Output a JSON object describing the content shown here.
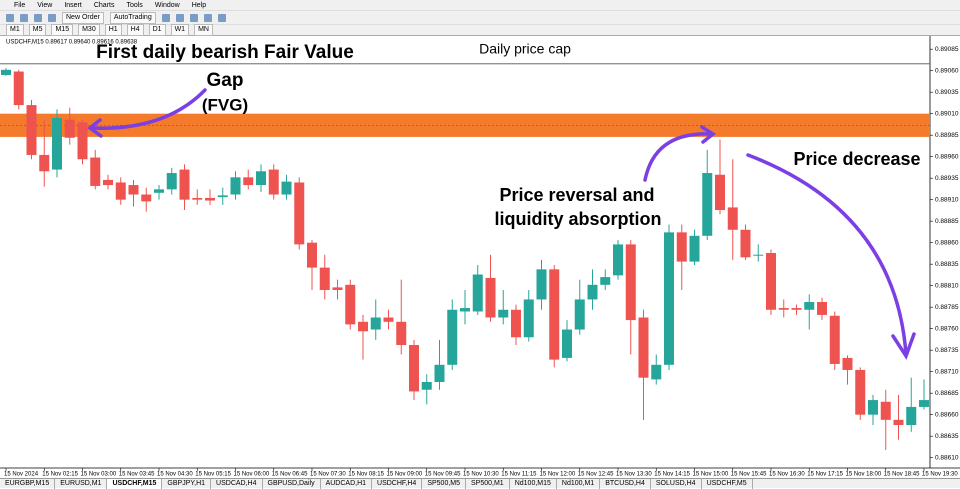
{
  "ui": {
    "menu": [
      "File",
      "View",
      "Insert",
      "Charts",
      "Tools",
      "Window",
      "Help"
    ],
    "toolbar": {
      "new_order": "New Order",
      "autotrading": "AutoTrading",
      "timeframes": [
        "M1",
        "M5",
        "M15",
        "M30",
        "H1",
        "H4",
        "D1",
        "W1",
        "MN"
      ]
    },
    "symbol_info": "USDCHF,M15  0.89617 0.89640 0.89616 0.89638",
    "tabs": [
      "EURGBP,M15",
      "EURUSD,M1",
      "USDCHF,M15",
      "GBPJPY,H1",
      "USDCAD,H4",
      "GBPUSD,Daily",
      "AUDCAD,H1",
      "USDCHF,H4",
      "SP500,M5",
      "SP500,M1",
      "Nd100,M15",
      "Nd100,M1",
      "BTCUSD,H4",
      "SOLUSD,H4",
      "USDCHF,M5"
    ],
    "active_tab": 2
  },
  "chart_data": {
    "type": "candlestick",
    "categories": [
      "15 Nov 2024",
      null,
      null,
      "15 Nov 02:15",
      null,
      null,
      "15 Nov 03:00",
      null,
      null,
      "15 Nov 03:45",
      null,
      null,
      "15 Nov 04:30",
      null,
      null,
      "15 Nov 05:15",
      null,
      null,
      "15 Nov 06:00",
      null,
      null,
      "15 Nov 06:45",
      null,
      null,
      "15 Nov 07:30",
      null,
      null,
      "15 Nov 08:15",
      null,
      null,
      "15 Nov 09:00",
      null,
      null,
      "15 Nov 09:45",
      null,
      null,
      "15 Nov 10:30",
      null,
      null,
      "15 Nov 11:15",
      null,
      null,
      "15 Nov 12:00",
      null,
      null,
      "15 Nov 12:45",
      null,
      null,
      "15 Nov 13:30",
      null,
      null,
      "15 Nov 14:15",
      null,
      null,
      "15 Nov 15:00",
      null,
      null,
      "15 Nov 15:45",
      null,
      null,
      "15 Nov 16:30",
      null,
      null,
      "15 Nov 17:15",
      null,
      null,
      "15 Nov 18:00",
      null,
      null,
      "15 Nov 18:45",
      null,
      null,
      "15 Nov 19:30"
    ],
    "open": [
      0.89055,
      0.89059,
      0.8902,
      0.88962,
      0.88945,
      0.89003,
      0.89,
      0.88959,
      0.88933,
      0.8893,
      0.88927,
      0.88916,
      0.88918,
      0.88922,
      0.88945,
      0.88912,
      0.88912,
      0.88913,
      0.88916,
      0.88936,
      0.88927,
      0.88945,
      0.88916,
      0.8893,
      0.8886,
      0.88831,
      0.88808,
      0.88811,
      0.88768,
      0.88759,
      0.88773,
      0.88768,
      0.88741,
      0.88689,
      0.88698,
      0.88718,
      0.8878,
      0.8878,
      0.88819,
      0.88773,
      0.88782,
      0.8875,
      0.88794,
      0.88829,
      0.88726,
      0.88759,
      0.88794,
      0.88811,
      0.88822,
      0.88858,
      0.88773,
      0.88701,
      0.88718,
      0.88872,
      0.88838,
      0.88868,
      0.88939,
      0.88901,
      0.88875,
      0.88845,
      0.88848,
      0.88784,
      0.88784,
      0.88782,
      0.88791,
      0.88775,
      0.88726,
      0.88712,
      0.8866,
      0.88675,
      0.88654,
      0.88648,
      0.88669
    ],
    "high": [
      0.89063,
      0.89061,
      0.89026,
      0.89003,
      0.89015,
      0.89017,
      0.89003,
      0.88968,
      0.88939,
      0.88936,
      0.88933,
      0.88924,
      0.88927,
      0.88947,
      0.88951,
      0.88922,
      0.88922,
      0.88924,
      0.88943,
      0.88945,
      0.88951,
      0.88951,
      0.88939,
      0.88936,
      0.88863,
      0.88846,
      0.88817,
      0.88817,
      0.88776,
      0.88794,
      0.88782,
      0.88817,
      0.88747,
      0.88707,
      0.88747,
      0.88794,
      0.88805,
      0.88834,
      0.88846,
      0.88805,
      0.88788,
      0.88805,
      0.8884,
      0.88834,
      0.8877,
      0.88817,
      0.88829,
      0.88829,
      0.88863,
      0.88863,
      0.88782,
      0.8873,
      0.88881,
      0.88881,
      0.88875,
      0.88968,
      0.8898,
      0.88957,
      0.88881,
      0.88858,
      0.88852,
      0.88794,
      0.88788,
      0.888,
      0.88796,
      0.8878,
      0.88729,
      0.88715,
      0.88683,
      0.88689,
      0.88683,
      0.88703,
      0.88701
    ],
    "low": [
      0.89054,
      0.89015,
      0.88957,
      0.88925,
      0.88936,
      0.88974,
      0.88951,
      0.88922,
      0.88922,
      0.88904,
      0.88902,
      0.88896,
      0.8891,
      0.88916,
      0.88898,
      0.88904,
      0.88904,
      0.88904,
      0.8891,
      0.88922,
      0.88919,
      0.8891,
      0.8891,
      0.88852,
      0.88805,
      0.88794,
      0.88794,
      0.88759,
      0.88724,
      0.88747,
      0.88759,
      0.8873,
      0.88677,
      0.88672,
      0.88689,
      0.88712,
      0.88765,
      0.88776,
      0.88768,
      0.88765,
      0.88741,
      0.88745,
      0.88782,
      0.88715,
      0.88722,
      0.88753,
      0.88782,
      0.88805,
      0.88817,
      0.8873,
      0.88654,
      0.88695,
      0.88712,
      0.88805,
      0.88834,
      0.88863,
      0.88893,
      0.8884,
      0.8884,
      0.88838,
      0.88776,
      0.88773,
      0.88776,
      0.88759,
      0.8877,
      0.88712,
      0.88695,
      0.88654,
      0.88648,
      0.88619,
      0.88631,
      0.8864,
      0.88666
    ],
    "close": [
      0.89061,
      0.8902,
      0.88962,
      0.88943,
      0.89005,
      0.88982,
      0.88957,
      0.88926,
      0.88927,
      0.8891,
      0.88916,
      0.88908,
      0.88922,
      0.88941,
      0.8891,
      0.8891,
      0.88909,
      0.88915,
      0.88936,
      0.88927,
      0.88943,
      0.88916,
      0.88931,
      0.88858,
      0.88831,
      0.88805,
      0.88805,
      0.88765,
      0.88757,
      0.88773,
      0.88768,
      0.88741,
      0.88687,
      0.88698,
      0.88718,
      0.88782,
      0.88784,
      0.88823,
      0.88773,
      0.88782,
      0.8875,
      0.88794,
      0.88829,
      0.88724,
      0.88759,
      0.88794,
      0.88811,
      0.8882,
      0.88858,
      0.8877,
      0.88703,
      0.88718,
      0.88872,
      0.88838,
      0.88868,
      0.88941,
      0.88898,
      0.88875,
      0.88843,
      0.88846,
      0.88782,
      0.88782,
      0.88782,
      0.88791,
      0.88776,
      0.88719,
      0.88712,
      0.8866,
      0.88677,
      0.88654,
      0.88648,
      0.88669,
      0.88677
    ],
    "up_color": "#26a69a",
    "down_color": "#ef5350",
    "ylim": [
      0.88598,
      0.89098
    ],
    "yticks": [
      {
        "value": 0.8861,
        "label": "0.88610"
      },
      0.88635,
      {
        "value": 0.8866,
        "label": "0.88660"
      },
      0.88685,
      {
        "value": 0.8871,
        "label": "0.88710"
      },
      0.88735,
      {
        "value": 0.8876,
        "label": "0.88760"
      },
      0.88785,
      {
        "value": 0.8881,
        "label": "0.88810"
      },
      0.88835,
      {
        "value": 0.8886,
        "label": "0.88860"
      },
      0.88885,
      {
        "value": 0.8891,
        "label": "0.88910"
      },
      0.88935,
      {
        "value": 0.8896,
        "label": "0.88960"
      },
      0.88985,
      {
        "value": 0.8901,
        "label": "0.89010"
      },
      0.89035,
      {
        "value": 0.8906,
        "label": "0.89060"
      },
      0.89085
    ],
    "fvg_zone": [
      0.88983,
      0.8901
    ],
    "fvg_color": "#f47a2c",
    "price_cap": 0.89068,
    "annotations": {
      "fvg_1": "First daily bearish Fair Value",
      "fvg_2": "Gap",
      "fvg_3": "(FVG)",
      "cap": "Daily price cap",
      "reversal_1": "Price reversal and",
      "reversal_2": "liquidity absorption",
      "decrease": "Price decrease"
    }
  }
}
